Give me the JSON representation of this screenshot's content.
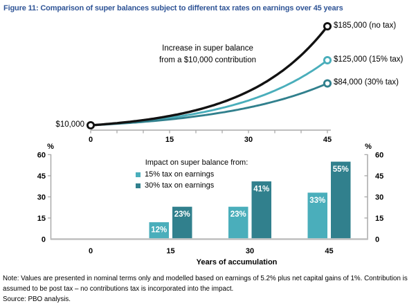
{
  "figure_title": "Figure 11: Comparison of super balances subject to different tax rates on earnings over 45 years",
  "colors": {
    "title_blue": "#2F5496",
    "axis_grey": "#A9A9A9",
    "baseline_grey": "#BFBFBF",
    "black_series": "#121212",
    "teal_light": "#4AAEBB",
    "teal_dark": "#31808D",
    "bar_label": "#FFFFFF",
    "text": "#000000"
  },
  "chart_data": [
    {
      "type": "line",
      "annotation": "Increase in super balance\nfrom a $10,000 contribution",
      "start_label": "$10,000",
      "start_value": 10000,
      "x_range": [
        0,
        45
      ],
      "x_major_ticks": [
        0,
        15,
        30,
        45
      ],
      "x_tick_labels": [
        "0",
        "15",
        "30",
        "45"
      ],
      "x_minor_tick_step": 5,
      "y_range": [
        10000,
        185000
      ],
      "growth": "exponential",
      "series": [
        {
          "name": "no tax",
          "end_value": 185000,
          "end_label": "$185,000 (no tax)",
          "color": "#121212"
        },
        {
          "name": "15% tax",
          "end_value": 125000,
          "end_label": "$125,000 (15% tax)",
          "color": "#4AAEBB"
        },
        {
          "name": "30% tax",
          "end_value": 84000,
          "end_label": "$84,000 (30% tax)",
          "color": "#31808D"
        }
      ]
    },
    {
      "type": "bar",
      "categories": [
        "15",
        "30",
        "45"
      ],
      "x_tick_labels": [
        "0",
        "15",
        "30",
        "45"
      ],
      "xlabel": "Years of accumulation",
      "y_unit": "%",
      "ylim": [
        0,
        60
      ],
      "y_ticks": [
        0,
        15,
        30,
        45,
        60
      ],
      "y_tick_labels": [
        "0",
        "15",
        "30",
        "45",
        "60"
      ],
      "legend_title": "Impact on super balance from:",
      "series": [
        {
          "name": "15% tax on earnings",
          "values": [
            12,
            23,
            33
          ],
          "labels": [
            "12%",
            "23%",
            "33%"
          ],
          "color": "#4AAEBB"
        },
        {
          "name": "30% tax on earnings",
          "values": [
            23,
            41,
            55
          ],
          "labels": [
            "23%",
            "41%",
            "55%"
          ],
          "color": "#31808D"
        }
      ]
    }
  ],
  "notes": {
    "note": "Note: Values are presented in nominal terms only and modelled based on earnings of 5.2% plus net capital gains of 1%. Contribution is assumed to be post tax – no contributions tax is incorporated into the impact.",
    "source": "Source: PBO analysis."
  }
}
